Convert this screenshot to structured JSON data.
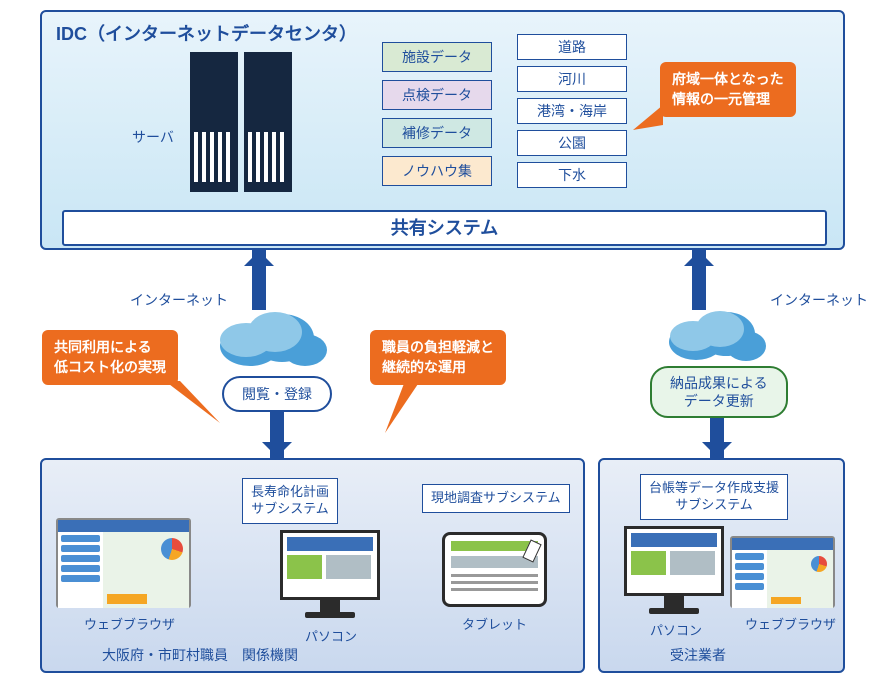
{
  "idc": {
    "title": "IDC（インターネットデータセンタ）",
    "server_label": "サーバ",
    "data_types": [
      {
        "label": "施設データ",
        "bg": "#d9ead3"
      },
      {
        "label": "点検データ",
        "bg": "#e6d9ec"
      },
      {
        "label": "補修データ",
        "bg": "#cfe8e3"
      },
      {
        "label": "ノウハウ集",
        "bg": "#fce9cf"
      }
    ],
    "categories": [
      "道路",
      "河川",
      "港湾・海岸",
      "公園",
      "下水"
    ],
    "shared_system": "共有システム",
    "callout": "府域一体となった\n情報の一元管理"
  },
  "network": {
    "internet_label": "インターネット",
    "left_action": "閲覧・登録",
    "right_action": "納品成果による\nデータ更新",
    "callout_left": "共同利用による\n低コスト化の実現",
    "callout_mid": "職員の負担軽減と\n継続的な運用"
  },
  "left_panel": {
    "title": "大阪府・市町村職員　関係機関",
    "browser_label": "ウェブブラウザ",
    "subsystem1": "長寿命化計画\nサブシステム",
    "pc_label": "パソコン",
    "subsystem2": "現地調査サブシステム",
    "tablet_label": "タブレット"
  },
  "right_panel": {
    "title": "受注業者",
    "subsystem": "台帳等データ作成支援\nサブシステム",
    "pc_label": "パソコン",
    "browser_label": "ウェブブラウザ"
  },
  "colors": {
    "primary": "#1f4e9c",
    "callout": "#ec6c1f",
    "action_green_border": "#2e7d32",
    "action_green_bg": "#e8f5e9"
  }
}
